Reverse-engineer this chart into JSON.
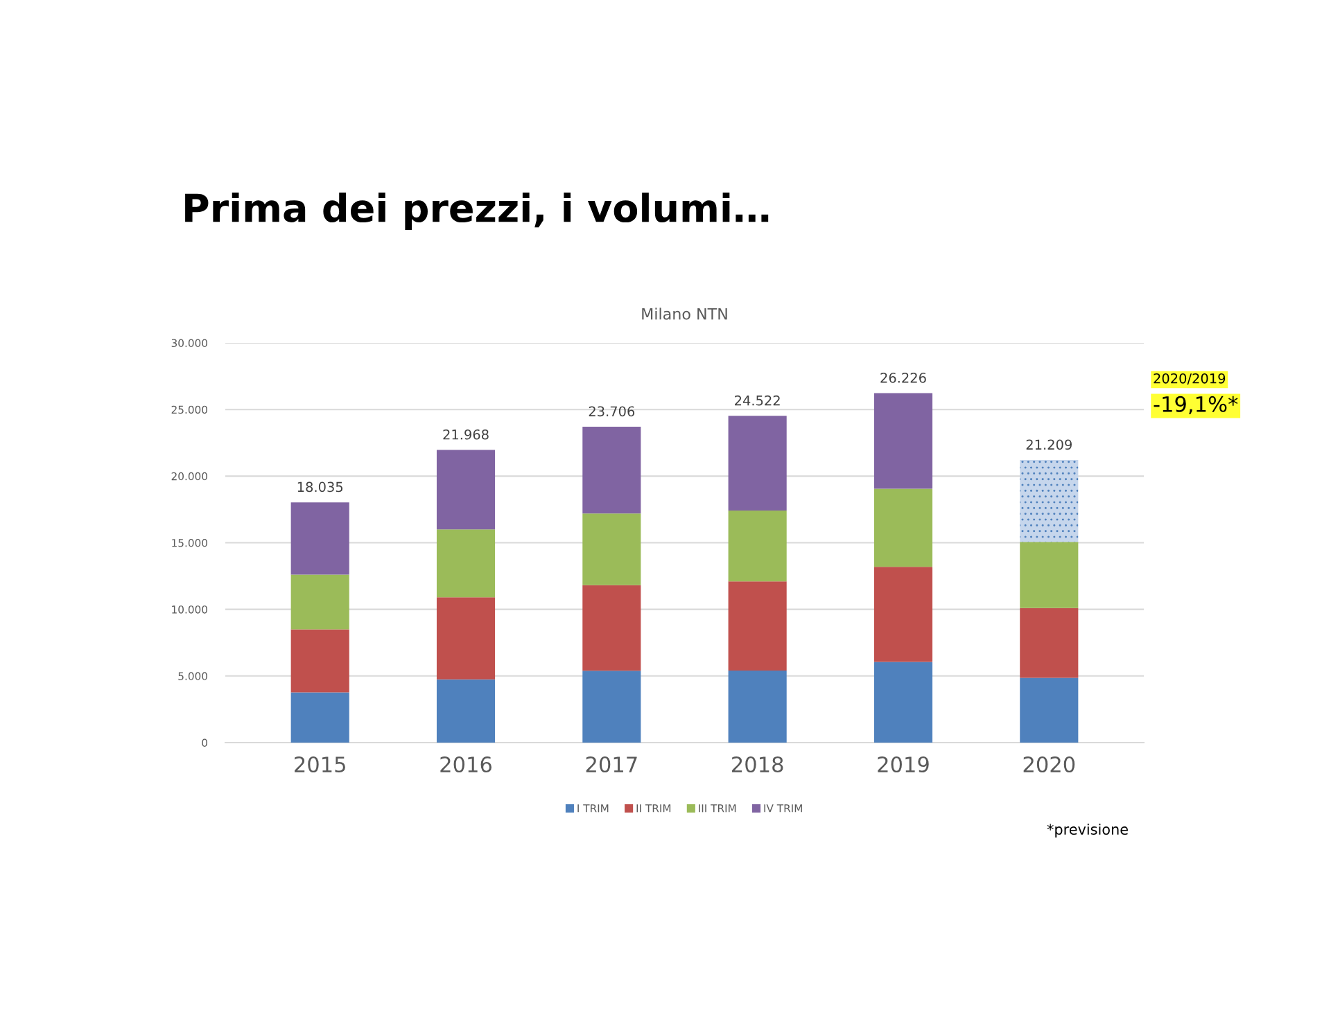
{
  "chart_data": {
    "type": "bar",
    "title": "Prima dei prezzi, i volumi…",
    "subtitle": "Milano NTN",
    "categories": [
      "2015",
      "2016",
      "2017",
      "2018",
      "2019",
      "2020"
    ],
    "stacked": true,
    "series": [
      {
        "name": "I TRIM",
        "color": "#4f81bd",
        "values": [
          3770,
          4750,
          5400,
          5410,
          6060,
          4860
        ]
      },
      {
        "name": "II TRIM",
        "color": "#c0504d",
        "values": [
          4730,
          6160,
          6420,
          6690,
          7130,
          5240
        ]
      },
      {
        "name": "III TRIM",
        "color": "#9bbb59",
        "values": [
          4110,
          5090,
          5380,
          5320,
          5860,
          4970
        ]
      },
      {
        "name": "IV TRIM",
        "color": "#8064a2",
        "colors": [
          "#8064a2",
          "#8064a2",
          "#8064a2",
          "#8064a2",
          "#8064a2",
          "#c6d6ec"
        ],
        "values": [
          5425,
          5968,
          6506,
          7102,
          7176,
          6139
        ]
      }
    ],
    "totals": [
      "18.035",
      "21.968",
      "23.706",
      "24.522",
      "26.226",
      "21.209"
    ],
    "ylim": [
      0,
      30000
    ],
    "yticks": [
      {
        "value": 0,
        "label": "0"
      },
      {
        "value": 5000,
        "label": "5.000"
      },
      {
        "value": 10000,
        "label": "10.000"
      },
      {
        "value": 15000,
        "label": "15.000"
      },
      {
        "value": 20000,
        "label": "20.000"
      },
      {
        "value": 25000,
        "label": "25.000"
      },
      {
        "value": 30000,
        "label": "30.000"
      }
    ],
    "grid": "y",
    "legend": "bottom",
    "annotations": [
      "2020/2019",
      "-19,1%*",
      "*previsione"
    ]
  }
}
